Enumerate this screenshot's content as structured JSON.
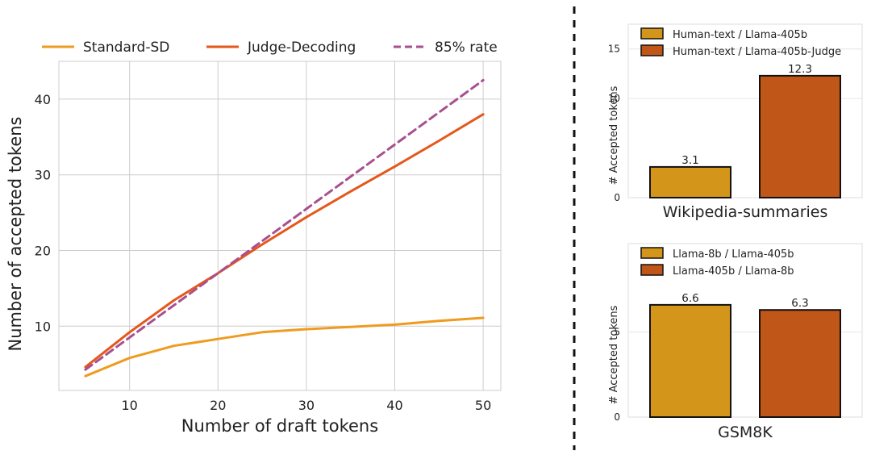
{
  "chart_data": [
    {
      "type": "line",
      "xlabel": "Number of draft tokens",
      "ylabel": "Number of accepted tokens",
      "xlim": [
        2,
        52
      ],
      "ylim": [
        1.5,
        45
      ],
      "xticks": [
        10,
        20,
        30,
        40,
        50
      ],
      "yticks": [
        10,
        20,
        30,
        40
      ],
      "grid": true,
      "legend_position": "top",
      "series": [
        {
          "name": "Standard-SD",
          "color": "#ef9b20",
          "style": "solid",
          "x": [
            5,
            10,
            15,
            20,
            25,
            30,
            35,
            40,
            45,
            50
          ],
          "y": [
            3.4,
            5.8,
            7.4,
            8.3,
            9.2,
            9.6,
            9.9,
            10.2,
            10.7,
            11.1
          ]
        },
        {
          "name": "Judge-Decoding",
          "color": "#e5571b",
          "style": "solid",
          "x": [
            5,
            10,
            15,
            20,
            25,
            30,
            35,
            40,
            45,
            50
          ],
          "y": [
            4.6,
            9.2,
            13.4,
            17.0,
            20.8,
            24.4,
            27.8,
            31.1,
            34.5,
            38.0
          ]
        },
        {
          "name": "85% rate",
          "color": "#a8508f",
          "style": "dashed",
          "x": [
            5,
            10,
            15,
            20,
            25,
            30,
            35,
            40,
            45,
            50
          ],
          "y": [
            4.25,
            8.5,
            12.75,
            17.0,
            21.25,
            25.5,
            29.75,
            34.0,
            38.25,
            42.5
          ]
        }
      ]
    },
    {
      "type": "bar",
      "xlabel": "Wikipedia-summaries",
      "ylabel": "# Accepted tokens",
      "ylim": [
        0,
        17.5
      ],
      "yticks": [
        0,
        10,
        15
      ],
      "legend_position": "top",
      "series": [
        {
          "name": "Human-text / Llama-405b",
          "color": "#d4961a",
          "value": 3.1,
          "label": "3.1"
        },
        {
          "name": "Human-text / Llama-405b-Judge",
          "color": "#c05617",
          "value": 12.3,
          "label": "12.3"
        }
      ]
    },
    {
      "type": "bar",
      "xlabel": "GSM8K",
      "ylabel": "# Accepted tokens",
      "ylim": [
        0,
        10.2
      ],
      "yticks": [
        0,
        5
      ],
      "legend_position": "top",
      "series": [
        {
          "name": "Llama-8b / Llama-405b",
          "color": "#d4961a",
          "value": 6.6,
          "label": "6.6"
        },
        {
          "name": "Llama-405b / Llama-8b",
          "color": "#c05617",
          "value": 6.3,
          "label": "6.3"
        }
      ]
    }
  ]
}
